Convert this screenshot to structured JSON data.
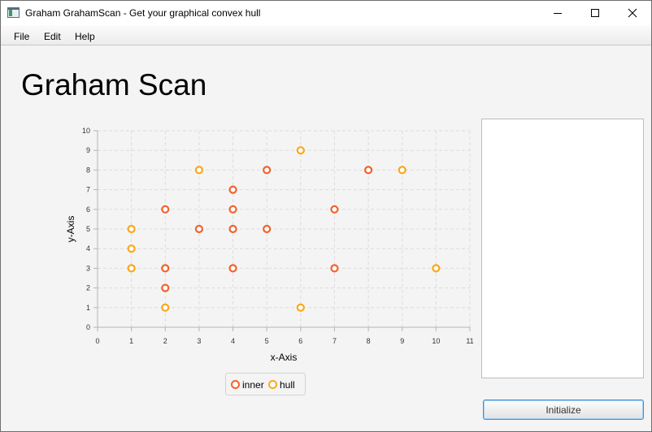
{
  "window": {
    "title": "Graham GrahamScan - Get your graphical convex hull"
  },
  "menu": {
    "items": [
      "File",
      "Edit",
      "Help"
    ]
  },
  "header": {
    "title": "Graham Scan"
  },
  "controls": {
    "initialize_label": "Initialize"
  },
  "colors": {
    "inner": "#f3622d",
    "hull": "#fba71b"
  },
  "chart_data": {
    "type": "scatter",
    "xlabel": "x-Axis",
    "ylabel": "y-Axis",
    "xlim": [
      0,
      11
    ],
    "ylim": [
      0,
      10
    ],
    "x_ticks": [
      0,
      1,
      2,
      3,
      4,
      5,
      6,
      7,
      8,
      9,
      10,
      11
    ],
    "y_ticks": [
      0,
      1,
      2,
      3,
      4,
      5,
      6,
      7,
      8,
      9,
      10
    ],
    "grid": true,
    "legend": "bottom",
    "series": [
      {
        "name": "inner",
        "points": [
          [
            2,
            6
          ],
          [
            2,
            3
          ],
          [
            2,
            2
          ],
          [
            3,
            5
          ],
          [
            4,
            7
          ],
          [
            4,
            6
          ],
          [
            4,
            5
          ],
          [
            4,
            3
          ],
          [
            5,
            8
          ],
          [
            5,
            5
          ],
          [
            7,
            6
          ],
          [
            7,
            3
          ],
          [
            8,
            8
          ]
        ]
      },
      {
        "name": "hull",
        "points": [
          [
            1,
            5
          ],
          [
            1,
            4
          ],
          [
            1,
            3
          ],
          [
            2,
            1
          ],
          [
            3,
            8
          ],
          [
            6,
            9
          ],
          [
            6,
            1
          ],
          [
            9,
            8
          ],
          [
            10,
            3
          ]
        ]
      }
    ]
  }
}
